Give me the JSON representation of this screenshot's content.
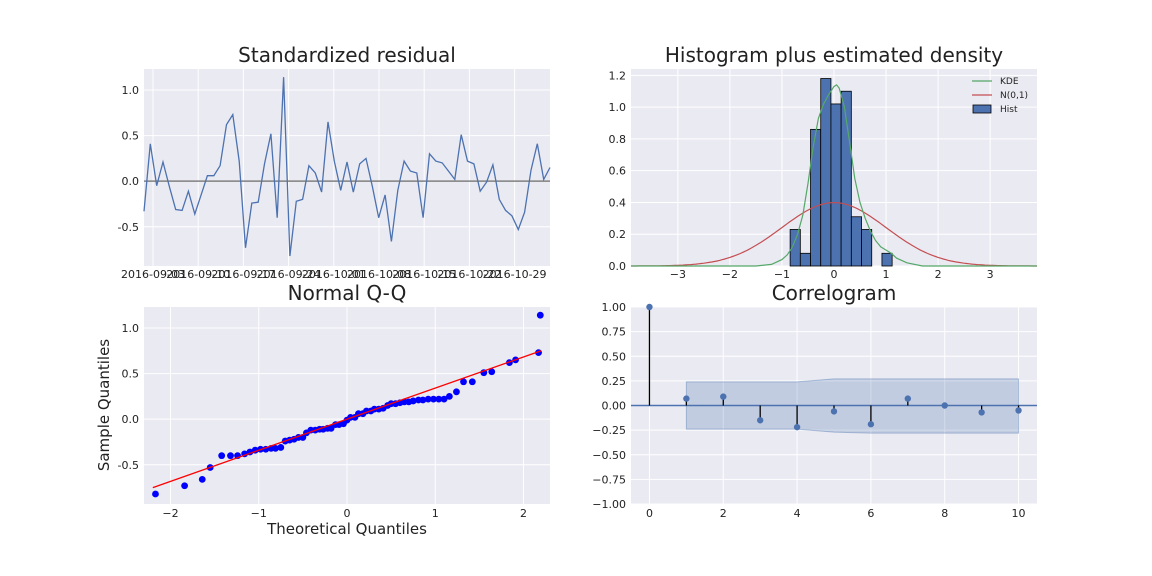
{
  "colors": {
    "panel_bg": "#EAEAF2",
    "grid": "#FFFFFF",
    "line_blue": "#4C72B0",
    "kde_green": "#55A868",
    "normal_red": "#C44E52",
    "qq_points": "#0000FF",
    "qq_line": "#FF0000",
    "zero_line": "#808080",
    "stem": "#000000"
  },
  "chart_data": [
    {
      "type": "line",
      "title": "Standardized residual",
      "x_tick_labels": [
        "2016-09-03",
        "2016-09-10",
        "2016-09-17",
        "2016-09-24",
        "2016-10-01",
        "2016-10-08",
        "2016-10-15",
        "2016-10-22",
        "2016-10-29"
      ],
      "y_ticks": [
        "-0.5",
        "0.0",
        "0.5",
        "1.0"
      ],
      "ylim": [
        -0.93,
        1.23
      ],
      "y_values": [
        -0.33,
        0.41,
        -0.05,
        0.21,
        -0.06,
        -0.31,
        -0.32,
        -0.11,
        -0.36,
        -0.15,
        0.06,
        0.06,
        0.17,
        0.62,
        0.73,
        0.22,
        -0.73,
        -0.24,
        -0.23,
        0.19,
        0.52,
        -0.4,
        1.14,
        -0.82,
        -0.22,
        -0.2,
        0.17,
        0.09,
        -0.12,
        0.65,
        0.22,
        -0.1,
        0.21,
        -0.12,
        0.19,
        0.25,
        -0.06,
        -0.4,
        -0.15,
        -0.66,
        -0.1,
        0.22,
        0.11,
        0.09,
        -0.4,
        0.3,
        0.22,
        0.2,
        0.11,
        0.02,
        0.51,
        0.22,
        0.19,
        -0.11,
        -0.01,
        0.18,
        -0.2,
        -0.32,
        -0.38,
        -0.53,
        -0.34,
        0.12,
        0.41,
        0.02,
        0.15
      ],
      "reference_line": 0
    },
    {
      "type": "histogram",
      "title": "Histogram plus estimated density",
      "x_ticks": [
        "−3",
        "−2",
        "−1",
        "0",
        "1",
        "2",
        "3"
      ],
      "y_ticks": [
        "0.0",
        "0.2",
        "0.4",
        "0.6",
        "0.8",
        "1.0",
        "1.2"
      ],
      "xlim": [
        -3.9,
        3.9
      ],
      "ylim": [
        0,
        1.24
      ],
      "bin_width": 0.196,
      "bins": [
        {
          "left": -0.843,
          "height": 0.23
        },
        {
          "left": -0.647,
          "height": 0.08
        },
        {
          "left": -0.451,
          "height": 0.86
        },
        {
          "left": -0.255,
          "height": 1.18
        },
        {
          "left": -0.059,
          "height": 1.02
        },
        {
          "left": 0.137,
          "height": 1.1
        },
        {
          "left": 0.333,
          "height": 0.31
        },
        {
          "left": 0.529,
          "height": 0.23
        },
        {
          "left": 0.921,
          "height": 0.08
        }
      ],
      "kde": {
        "x": [
          -3.9,
          -1.5,
          -1.2,
          -1.0,
          -0.9,
          -0.8,
          -0.7,
          -0.6,
          -0.5,
          -0.4,
          -0.3,
          -0.2,
          -0.1,
          0.0,
          0.05,
          0.1,
          0.2,
          0.3,
          0.4,
          0.5,
          0.6,
          0.7,
          0.8,
          0.9,
          1.0,
          1.1,
          1.2,
          1.4,
          1.7,
          3.9
        ],
        "y": [
          0,
          0.0,
          0.01,
          0.04,
          0.07,
          0.12,
          0.2,
          0.32,
          0.52,
          0.75,
          0.93,
          1.02,
          1.08,
          1.13,
          1.14,
          1.12,
          1.0,
          0.78,
          0.55,
          0.4,
          0.3,
          0.22,
          0.16,
          0.12,
          0.1,
          0.08,
          0.05,
          0.02,
          0.0,
          0
        ]
      },
      "normal": {
        "mean": 0,
        "sd": 1
      },
      "legend": [
        "KDE",
        "N(0,1)",
        "Hist"
      ],
      "legend_placement": "top-right"
    },
    {
      "type": "scatter",
      "title": "Normal Q-Q",
      "xlabel": "Theoretical Quantiles",
      "ylabel": "Sample Quantiles",
      "x_ticks": [
        "−2",
        "−1",
        "0",
        "1",
        "2"
      ],
      "y_ticks": [
        "-0.5",
        "0.0",
        "0.5",
        "1.0"
      ],
      "xlim": [
        -2.3,
        2.3
      ],
      "ylim": [
        -0.93,
        1.23
      ],
      "points": [
        [
          -2.17,
          -0.82
        ],
        [
          -1.84,
          -0.73
        ],
        [
          -1.64,
          -0.66
        ],
        [
          -1.55,
          -0.53
        ],
        [
          -1.42,
          -0.4
        ],
        [
          -1.32,
          -0.4
        ],
        [
          -1.24,
          -0.4
        ],
        [
          -1.16,
          -0.38
        ],
        [
          -1.1,
          -0.36
        ],
        [
          -1.04,
          -0.34
        ],
        [
          -0.98,
          -0.33
        ],
        [
          -0.92,
          -0.33
        ],
        [
          -0.86,
          -0.32
        ],
        [
          -0.81,
          -0.32
        ],
        [
          -0.75,
          -0.31
        ],
        [
          -0.7,
          -0.24
        ],
        [
          -0.65,
          -0.23
        ],
        [
          -0.6,
          -0.22
        ],
        [
          -0.55,
          -0.2
        ],
        [
          -0.5,
          -0.2
        ],
        [
          -0.46,
          -0.15
        ],
        [
          -0.41,
          -0.12
        ],
        [
          -0.36,
          -0.12
        ],
        [
          -0.31,
          -0.11
        ],
        [
          -0.27,
          -0.11
        ],
        [
          -0.22,
          -0.1
        ],
        [
          -0.18,
          -0.1
        ],
        [
          -0.13,
          -0.06
        ],
        [
          -0.09,
          -0.06
        ],
        [
          -0.04,
          -0.05
        ],
        [
          0.0,
          -0.01
        ],
        [
          0.04,
          0.02
        ],
        [
          0.09,
          0.02
        ],
        [
          0.13,
          0.06
        ],
        [
          0.18,
          0.06
        ],
        [
          0.22,
          0.09
        ],
        [
          0.27,
          0.09
        ],
        [
          0.31,
          0.11
        ],
        [
          0.36,
          0.11
        ],
        [
          0.41,
          0.12
        ],
        [
          0.46,
          0.15
        ],
        [
          0.5,
          0.17
        ],
        [
          0.55,
          0.17
        ],
        [
          0.6,
          0.18
        ],
        [
          0.65,
          0.19
        ],
        [
          0.7,
          0.19
        ],
        [
          0.75,
          0.2
        ],
        [
          0.81,
          0.21
        ],
        [
          0.86,
          0.21
        ],
        [
          0.92,
          0.22
        ],
        [
          0.98,
          0.22
        ],
        [
          1.04,
          0.22
        ],
        [
          1.1,
          0.22
        ],
        [
          1.16,
          0.25
        ],
        [
          1.24,
          0.3
        ],
        [
          1.32,
          0.41
        ],
        [
          1.42,
          0.41
        ],
        [
          1.55,
          0.51
        ],
        [
          1.64,
          0.52
        ],
        [
          1.84,
          0.62
        ],
        [
          1.91,
          0.65
        ],
        [
          2.17,
          0.73
        ],
        [
          2.19,
          1.14
        ]
      ],
      "reference_line": {
        "x": [
          -2.2,
          2.2
        ],
        "y": [
          -0.75,
          0.75
        ]
      }
    },
    {
      "type": "stem",
      "title": "Correlogram",
      "x_ticks": [
        "0",
        "2",
        "4",
        "6",
        "8",
        "10"
      ],
      "y_ticks": [
        "−1.00",
        "−0.75",
        "−0.50",
        "−0.25",
        "0.00",
        "0.25",
        "0.50",
        "0.75",
        "1.00"
      ],
      "xlim": [
        -0.5,
        10.5
      ],
      "ylim": [
        -1.0,
        1.0
      ],
      "lags": [
        0,
        1,
        2,
        3,
        4,
        5,
        6,
        7,
        8,
        9,
        10
      ],
      "values": [
        1.0,
        0.07,
        0.09,
        -0.15,
        -0.22,
        -0.06,
        -0.19,
        0.07,
        0.0,
        -0.07,
        -0.05
      ],
      "confidence_band": {
        "lags": [
          1,
          2,
          3,
          4,
          5,
          6,
          7,
          8,
          9,
          10
        ],
        "upper": [
          0.24,
          0.24,
          0.24,
          0.24,
          0.27,
          0.27,
          0.27,
          0.27,
          0.27,
          0.27
        ],
        "lower": [
          -0.24,
          -0.24,
          -0.24,
          -0.24,
          -0.27,
          -0.28,
          -0.28,
          -0.28,
          -0.28,
          -0.28
        ]
      }
    }
  ]
}
